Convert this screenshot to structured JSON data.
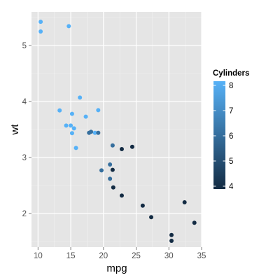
{
  "chart_data": {
    "type": "scatter",
    "title": "",
    "xlabel": "mpg",
    "ylabel": "wt",
    "xlim": [
      9.0,
      35.0
    ],
    "ylim": [
      1.4,
      5.6
    ],
    "xticks": [
      10,
      15,
      20,
      25,
      30,
      35
    ],
    "yticks": [
      2,
      3,
      4,
      5
    ],
    "grid": true,
    "panel_background": "#e5e5e5",
    "grid_color": "#ffffff",
    "color_scale": {
      "title": "Cylinders",
      "min": 4,
      "max": 8,
      "low_color": "#132b43",
      "high_color": "#56b1f7",
      "breaks": [
        4,
        5,
        6,
        7,
        8
      ],
      "placement": "right"
    },
    "points": [
      {
        "x": 21.0,
        "y": 2.62,
        "cyl": 6
      },
      {
        "x": 21.0,
        "y": 2.875,
        "cyl": 6
      },
      {
        "x": 22.8,
        "y": 2.32,
        "cyl": 4
      },
      {
        "x": 21.4,
        "y": 3.215,
        "cyl": 6
      },
      {
        "x": 18.7,
        "y": 3.44,
        "cyl": 8
      },
      {
        "x": 18.1,
        "y": 3.46,
        "cyl": 6
      },
      {
        "x": 14.3,
        "y": 3.57,
        "cyl": 8
      },
      {
        "x": 24.4,
        "y": 3.19,
        "cyl": 4
      },
      {
        "x": 22.8,
        "y": 3.15,
        "cyl": 4
      },
      {
        "x": 19.2,
        "y": 3.44,
        "cyl": 6
      },
      {
        "x": 17.8,
        "y": 3.44,
        "cyl": 6
      },
      {
        "x": 16.4,
        "y": 4.07,
        "cyl": 8
      },
      {
        "x": 17.3,
        "y": 3.73,
        "cyl": 8
      },
      {
        "x": 15.2,
        "y": 3.78,
        "cyl": 8
      },
      {
        "x": 10.4,
        "y": 5.25,
        "cyl": 8
      },
      {
        "x": 10.4,
        "y": 5.424,
        "cyl": 8
      },
      {
        "x": 14.7,
        "y": 5.345,
        "cyl": 8
      },
      {
        "x": 32.4,
        "y": 2.2,
        "cyl": 4
      },
      {
        "x": 30.4,
        "y": 1.615,
        "cyl": 4
      },
      {
        "x": 33.9,
        "y": 1.835,
        "cyl": 4
      },
      {
        "x": 21.5,
        "y": 2.465,
        "cyl": 4
      },
      {
        "x": 15.5,
        "y": 3.52,
        "cyl": 8
      },
      {
        "x": 15.2,
        "y": 3.435,
        "cyl": 8
      },
      {
        "x": 13.3,
        "y": 3.84,
        "cyl": 8
      },
      {
        "x": 19.2,
        "y": 3.845,
        "cyl": 8
      },
      {
        "x": 27.3,
        "y": 1.935,
        "cyl": 4
      },
      {
        "x": 26.0,
        "y": 2.14,
        "cyl": 4
      },
      {
        "x": 30.4,
        "y": 1.513,
        "cyl": 4
      },
      {
        "x": 15.8,
        "y": 3.17,
        "cyl": 8
      },
      {
        "x": 19.7,
        "y": 2.77,
        "cyl": 6
      },
      {
        "x": 15.0,
        "y": 3.57,
        "cyl": 8
      },
      {
        "x": 21.4,
        "y": 2.78,
        "cyl": 4
      }
    ]
  }
}
